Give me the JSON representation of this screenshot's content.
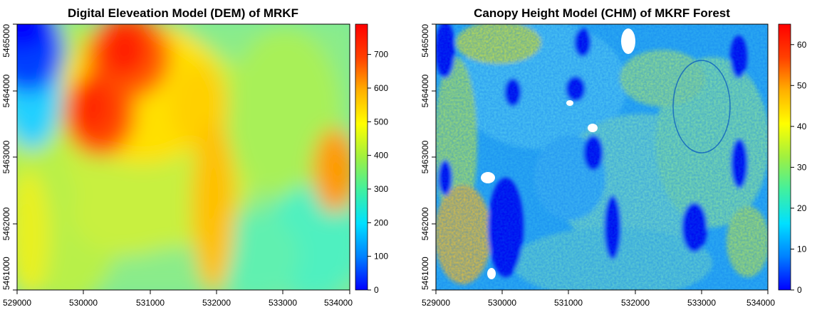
{
  "chart_data": [
    {
      "type": "heatmap",
      "title": "Digital Eleveation Model (DEM) of MRKF",
      "xlabel": "",
      "ylabel": "",
      "xlim": [
        529000,
        534000
      ],
      "ylim": [
        5461000,
        5465000
      ],
      "x_ticks": [
        529000,
        530000,
        531000,
        532000,
        533000,
        534000
      ],
      "y_ticks": [
        5461000,
        5462000,
        5463000,
        5464000,
        5465000
      ],
      "x_tick_labels": [
        "529000",
        "530000",
        "531000",
        "532000",
        "533000",
        "534000"
      ],
      "y_tick_labels": [
        "5461000",
        "5462000",
        "5463000",
        "5464000",
        "5465000"
      ],
      "colorbar": {
        "range": [
          0,
          790
        ],
        "ticks": [
          0,
          100,
          200,
          300,
          400,
          500,
          600,
          700
        ],
        "tick_labels": [
          "0",
          "100",
          "200",
          "300",
          "400",
          "500",
          "600",
          "700"
        ]
      },
      "colormap": [
        "#0000ff",
        "#0080ff",
        "#00e0ff",
        "#40f0a0",
        "#a0f040",
        "#ffff00",
        "#ffb000",
        "#ff4000",
        "#ff0000"
      ],
      "grid": false
    },
    {
      "type": "heatmap",
      "title": "Canopy Height Model (CHM) of MKRF Forest",
      "xlabel": "",
      "ylabel": "",
      "xlim": [
        529000,
        534000
      ],
      "ylim": [
        5461000,
        5465000
      ],
      "x_ticks": [
        529000,
        530000,
        531000,
        532000,
        533000,
        534000
      ],
      "y_ticks": [
        5461000,
        5462000,
        5463000,
        5464000,
        5465000
      ],
      "x_tick_labels": [
        "529000",
        "530000",
        "531000",
        "532000",
        "533000",
        "534000"
      ],
      "y_tick_labels": [
        "5461000",
        "5462000",
        "5463000",
        "5464000",
        "5465000"
      ],
      "colorbar": {
        "range": [
          0,
          65
        ],
        "ticks": [
          0,
          10,
          20,
          30,
          40,
          50,
          60
        ],
        "tick_labels": [
          "0",
          "10",
          "20",
          "30",
          "40",
          "50",
          "60"
        ]
      },
      "colormap": [
        "#0000ff",
        "#0080ff",
        "#00e0ff",
        "#40f0a0",
        "#a0f040",
        "#ffff00",
        "#ffb000",
        "#ff4000",
        "#ff0000"
      ],
      "grid": false
    }
  ]
}
